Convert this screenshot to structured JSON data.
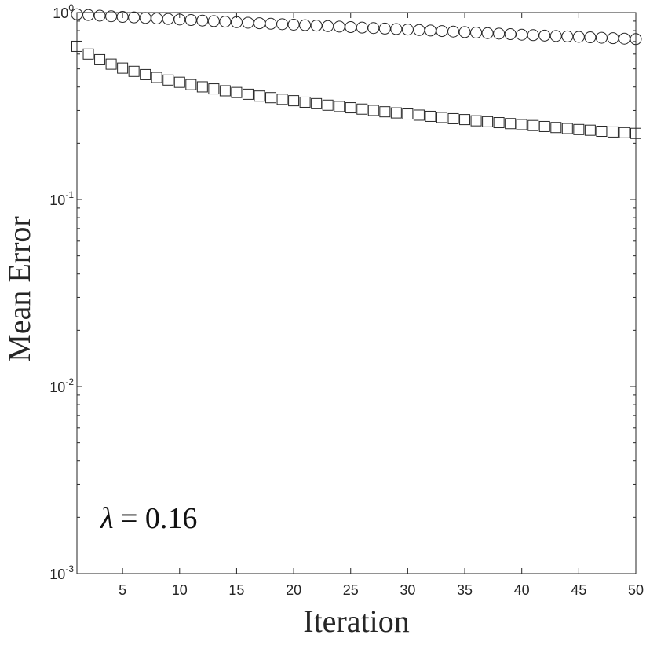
{
  "chart_data": {
    "type": "scatter",
    "title": "",
    "xlabel": "Iteration",
    "ylabel": "Mean Error",
    "xlim": [
      1,
      50
    ],
    "ylim": [
      0.001,
      1
    ],
    "yscale": "log",
    "grid": false,
    "legend": "none",
    "x_ticks": [
      5,
      10,
      15,
      20,
      25,
      30,
      35,
      40,
      45,
      50
    ],
    "y_ticks": [
      {
        "value": 1,
        "base": "10",
        "exp": "0"
      },
      {
        "value": 0.1,
        "base": "10",
        "exp": "-1"
      },
      {
        "value": 0.01,
        "base": "10",
        "exp": "-2"
      },
      {
        "value": 0.001,
        "base": "10",
        "exp": "-3"
      }
    ],
    "annotation": {
      "symbol": "λ",
      "text": " = 0.16"
    },
    "x": [
      1,
      2,
      3,
      4,
      5,
      6,
      7,
      8,
      9,
      10,
      11,
      12,
      13,
      14,
      15,
      16,
      17,
      18,
      19,
      20,
      21,
      22,
      23,
      24,
      25,
      26,
      27,
      28,
      29,
      30,
      31,
      32,
      33,
      34,
      35,
      36,
      37,
      38,
      39,
      40,
      41,
      42,
      43,
      44,
      45,
      46,
      47,
      48,
      49,
      50
    ],
    "series": [
      {
        "marker": "circle",
        "values": [
          0.978,
          0.97,
          0.962,
          0.955,
          0.948,
          0.942,
          0.936,
          0.93,
          0.924,
          0.918,
          0.912,
          0.906,
          0.9,
          0.894,
          0.888,
          0.882,
          0.876,
          0.871,
          0.866,
          0.861,
          0.856,
          0.851,
          0.846,
          0.841,
          0.836,
          0.831,
          0.826,
          0.821,
          0.816,
          0.811,
          0.806,
          0.801,
          0.796,
          0.791,
          0.786,
          0.781,
          0.776,
          0.771,
          0.766,
          0.761,
          0.757,
          0.753,
          0.749,
          0.745,
          0.741,
          0.737,
          0.733,
          0.729,
          0.725,
          0.721
        ]
      },
      {
        "marker": "square",
        "values": [
          0.66,
          0.6,
          0.56,
          0.53,
          0.505,
          0.485,
          0.466,
          0.45,
          0.436,
          0.424,
          0.412,
          0.401,
          0.391,
          0.382,
          0.374,
          0.366,
          0.358,
          0.351,
          0.344,
          0.338,
          0.332,
          0.326,
          0.32,
          0.315,
          0.31,
          0.305,
          0.3,
          0.295,
          0.291,
          0.287,
          0.283,
          0.279,
          0.275,
          0.271,
          0.268,
          0.264,
          0.261,
          0.258,
          0.255,
          0.252,
          0.249,
          0.246,
          0.243,
          0.24,
          0.237,
          0.235,
          0.232,
          0.23,
          0.228,
          0.226
        ]
      }
    ]
  }
}
